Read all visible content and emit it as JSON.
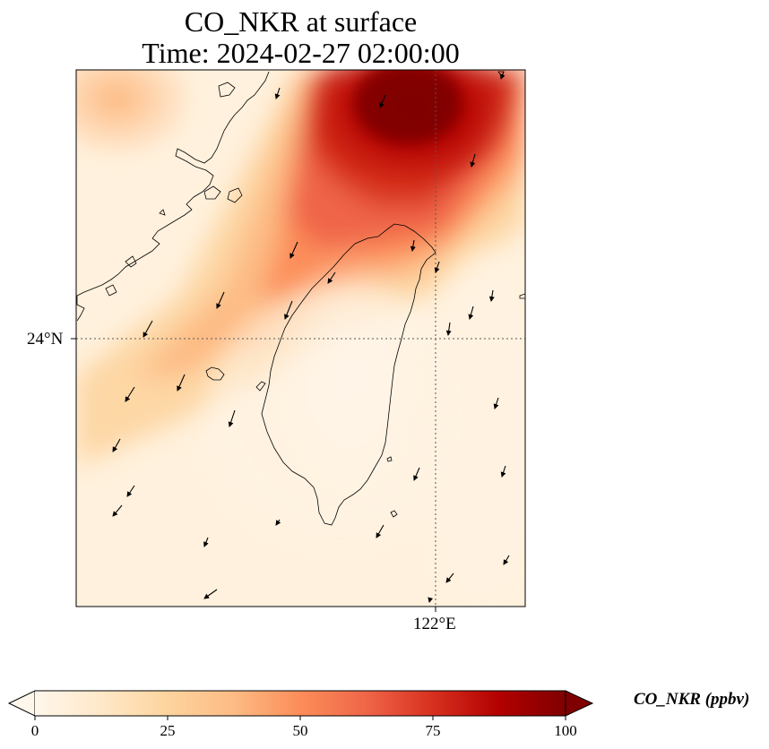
{
  "title": {
    "line1": "CO_NKR at surface",
    "line2": "Time: 2024-02-27 02:00:00"
  },
  "axes": {
    "lat_tick": "24°N",
    "lon_tick": "122°E"
  },
  "colorbar": {
    "label": "CO_NKR (ppbv)",
    "ticks": [
      "0",
      "25",
      "50",
      "75",
      "100"
    ],
    "range": [
      0,
      100
    ],
    "colormap": "OrRd",
    "colors": [
      "#fff7ec",
      "#fee8c8",
      "#fdd49e",
      "#fdbb84",
      "#fc8d59",
      "#ef6548",
      "#d7301f",
      "#b30000",
      "#7f0000"
    ],
    "extend": "both"
  },
  "map": {
    "gridlines": "dotted",
    "coastline_color": "#000000",
    "wind_vectors": "black arrows, mostly pointing south-southwest"
  }
}
